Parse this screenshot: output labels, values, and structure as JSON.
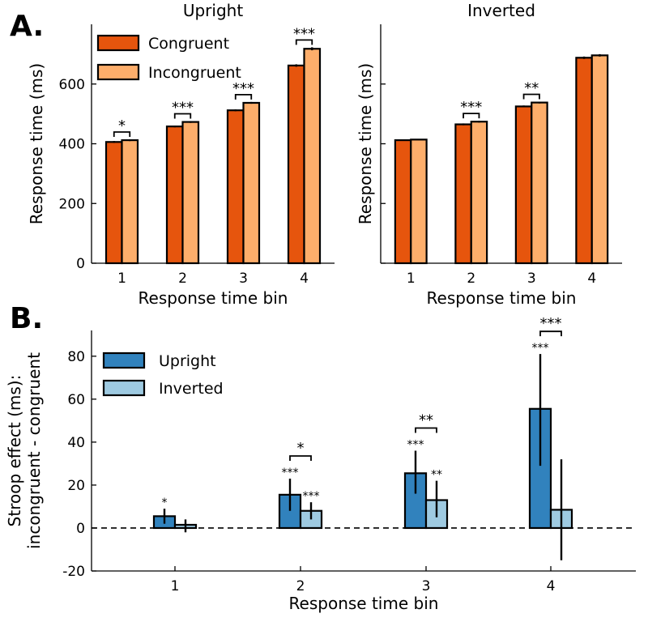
{
  "colors": {
    "congruent": "#e6550d",
    "incongruent": "#fdae6b",
    "upright": "#3182bd",
    "inverted": "#9ecae1"
  },
  "panel_labels": {
    "a": "A.",
    "b": "B."
  },
  "chart_data": [
    {
      "id": "A-upright",
      "type": "bar",
      "title": "Upright",
      "xlabel": "Response time bin",
      "ylabel": "Response time (ms)",
      "categories": [
        "1",
        "2",
        "3",
        "4"
      ],
      "ylim": [
        0,
        800
      ],
      "yticks": [
        0,
        200,
        400,
        600
      ],
      "series": [
        {
          "name": "Congruent",
          "color_key": "congruent",
          "values": [
            406,
            458,
            512,
            662
          ],
          "errors": [
            3,
            3,
            3,
            4
          ]
        },
        {
          "name": "Incongruent",
          "color_key": "incongruent",
          "values": [
            412,
            473,
            537,
            718
          ],
          "errors": [
            3,
            3,
            3,
            5
          ]
        }
      ],
      "significance": [
        "*",
        "***",
        "***",
        "***"
      ],
      "legend": {
        "position": "top-left",
        "entries": [
          "Congruent",
          "Incongruent"
        ]
      }
    },
    {
      "id": "A-inverted",
      "type": "bar",
      "title": "Inverted",
      "xlabel": "Response time bin",
      "ylabel": "Response time (ms)",
      "categories": [
        "1",
        "2",
        "3",
        "4"
      ],
      "ylim": [
        0,
        800
      ],
      "yticks": [
        0,
        200,
        400,
        600
      ],
      "series": [
        {
          "name": "Congruent",
          "color_key": "congruent",
          "values": [
            412,
            465,
            525,
            688
          ],
          "errors": [
            2,
            3,
            3,
            4
          ]
        },
        {
          "name": "Incongruent",
          "color_key": "incongruent",
          "values": [
            414,
            474,
            538,
            696
          ],
          "errors": [
            2,
            3,
            3,
            4
          ]
        }
      ],
      "significance": [
        "",
        "***",
        "**",
        ""
      ]
    },
    {
      "id": "B",
      "type": "bar",
      "xlabel": "Response time bin",
      "ylabel_lines": [
        "Stroop effect (ms):",
        "incongruent - congruent"
      ],
      "categories": [
        "1",
        "2",
        "3",
        "4"
      ],
      "ylim": [
        -20,
        92
      ],
      "yticks": [
        -20,
        0,
        20,
        40,
        60,
        80
      ],
      "series": [
        {
          "name": "Upright",
          "color_key": "upright",
          "values": [
            5.5,
            15.5,
            25.5,
            55.5
          ],
          "ci_low": [
            2,
            8,
            16,
            29
          ],
          "ci_high": [
            9,
            23,
            36,
            81
          ],
          "stars": [
            "*",
            "***",
            "***",
            "***"
          ]
        },
        {
          "name": "Inverted",
          "color_key": "inverted",
          "values": [
            1.5,
            8,
            13,
            8.5
          ],
          "ci_low": [
            -2,
            4,
            5,
            -15
          ],
          "ci_high": [
            4,
            12,
            22,
            32
          ],
          "stars": [
            "",
            "***",
            "**",
            ""
          ]
        }
      ],
      "comparisons": [
        "",
        "*",
        "**",
        "***"
      ],
      "reference_line": 0,
      "legend": {
        "position": "top-left",
        "entries": [
          "Upright",
          "Inverted"
        ]
      }
    }
  ]
}
